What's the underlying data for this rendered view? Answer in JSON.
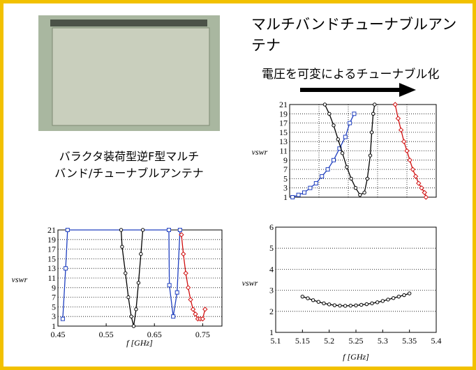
{
  "slide": {
    "title": [
      "マルチバンドチューナブルアン",
      "テナ"
    ],
    "arrow_label": "電圧を可変によるチューナブル化",
    "caption": [
      "バラクタ装荷型逆F型マルチ",
      "バンド/チューナブルアンテナ"
    ]
  },
  "chart_data": [
    {
      "type": "line",
      "ylabel": "vswr",
      "xlim": [
        0,
        100
      ],
      "ylim": [
        1,
        21
      ],
      "yticks": [
        1,
        3,
        5,
        7,
        9,
        11,
        13,
        15,
        17,
        19,
        21
      ],
      "grid": true,
      "vgrid": true,
      "series": [
        {
          "color": "#1f3fbf",
          "marker": "square",
          "x": [
            2,
            6,
            10,
            14,
            18,
            22,
            26,
            30,
            34,
            38,
            41,
            44
          ],
          "values": [
            1,
            1.5,
            2,
            3,
            4,
            5.5,
            7,
            9,
            11.5,
            14,
            17,
            19
          ]
        },
        {
          "color": "#000000",
          "marker": "circle",
          "x": [
            24,
            27,
            30,
            33,
            36,
            39,
            42,
            45,
            48,
            51,
            53,
            55,
            56,
            57,
            58
          ],
          "values": [
            21,
            19,
            16.5,
            13.5,
            10.5,
            7.5,
            5,
            3,
            1.5,
            2,
            5,
            10,
            15,
            19,
            21
          ]
        },
        {
          "color": "#d01010",
          "marker": "diamond",
          "x": [
            72,
            74,
            76,
            78,
            80,
            82,
            84,
            86,
            88,
            90,
            92,
            93
          ],
          "values": [
            21,
            18,
            15.5,
            13,
            11,
            9,
            7,
            5.5,
            4,
            3,
            2,
            1
          ]
        }
      ]
    },
    {
      "type": "line",
      "ylabel": "vswr",
      "xlabel": "f [GHz]",
      "xlim": [
        0.45,
        0.79
      ],
      "xticks": [
        0.45,
        0.55,
        0.65,
        0.75
      ],
      "ylim": [
        1,
        21
      ],
      "yticks": [
        1,
        3,
        5,
        7,
        9,
        11,
        13,
        15,
        17,
        19,
        21
      ],
      "grid": true,
      "series": [
        {
          "color": "#1f3fbf",
          "marker": "square",
          "x": [
            0.46,
            0.466,
            0.47,
            0.68,
            0.681,
            0.689,
            0.697,
            0.703
          ],
          "values": [
            2.5,
            13,
            21,
            21,
            9.5,
            3,
            8,
            21
          ]
        },
        {
          "color": "#000000",
          "marker": "circle",
          "x": [
            0.581,
            0.583,
            0.59,
            0.596,
            0.602,
            0.607,
            0.612,
            0.617,
            0.622,
            0.626
          ],
          "values": [
            21,
            17.5,
            12,
            7,
            3,
            1,
            4.5,
            10,
            16,
            21
          ]
        },
        {
          "color": "#d01010",
          "marker": "diamond",
          "x": [
            0.706,
            0.71,
            0.715,
            0.72,
            0.725,
            0.73,
            0.735,
            0.74,
            0.745,
            0.75,
            0.755
          ],
          "values": [
            20,
            16,
            12,
            9,
            6.5,
            4.5,
            3.5,
            2.5,
            2.5,
            2.5,
            4.5
          ]
        }
      ]
    },
    {
      "type": "line",
      "ylabel": "vswr",
      "xlabel": "f [GHz]",
      "xlim": [
        5.1,
        5.4
      ],
      "xticks": [
        5.1,
        5.15,
        5.2,
        5.25,
        5.3,
        5.35,
        5.4
      ],
      "ylim": [
        1,
        6
      ],
      "yticks": [
        1,
        2,
        3,
        4,
        5,
        6
      ],
      "grid": true,
      "series": [
        {
          "color": "#000000",
          "marker": "circle",
          "x": [
            5.15,
            5.16,
            5.17,
            5.18,
            5.19,
            5.2,
            5.21,
            5.22,
            5.23,
            5.24,
            5.25,
            5.26,
            5.27,
            5.28,
            5.29,
            5.3,
            5.31,
            5.32,
            5.33,
            5.34,
            5.35
          ],
          "values": [
            2.7,
            2.62,
            2.53,
            2.45,
            2.38,
            2.33,
            2.29,
            2.27,
            2.26,
            2.27,
            2.28,
            2.31,
            2.34,
            2.38,
            2.43,
            2.49,
            2.56,
            2.63,
            2.7,
            2.77,
            2.85
          ]
        }
      ]
    }
  ]
}
